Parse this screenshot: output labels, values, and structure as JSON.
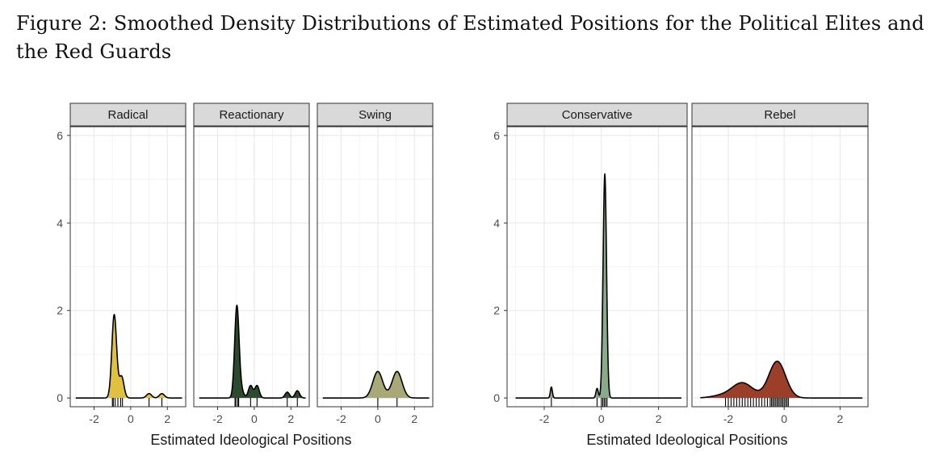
{
  "caption": "Figure 2: Smoothed Density Distributions of Estimated Positions for the Political Elites and the Red Guards",
  "chart_data": [
    {
      "type": "area",
      "group": "Political Elites",
      "xlabel": "Estimated Ideological Positions",
      "ylabel": "",
      "xlim": [
        -3.3,
        3.0
      ],
      "ylim": [
        -0.2,
        6.2
      ],
      "x_ticks": [
        -2,
        0,
        2
      ],
      "y_ticks": [
        0,
        2,
        4,
        6
      ],
      "grid": true,
      "panels": [
        {
          "name": "Radical",
          "fill": "#e0c040",
          "peaks": [
            {
              "mu": -0.9,
              "sd": 0.13,
              "w": 0.62
            },
            {
              "mu": -0.5,
              "sd": 0.13,
              "w": 0.16
            },
            {
              "mu": 1.0,
              "sd": 0.14,
              "w": 0.035
            },
            {
              "mu": 1.7,
              "sd": 0.14,
              "w": 0.035
            }
          ],
          "rug": [
            -1.0,
            -0.95,
            -0.85,
            -0.7,
            -0.55,
            -0.45,
            1.0,
            1.7
          ]
        },
        {
          "name": "Reactionary",
          "fill": "#2e4a2e",
          "peaks": [
            {
              "mu": -0.95,
              "sd": 0.12,
              "w": 0.63
            },
            {
              "mu": -0.7,
              "sd": 0.13,
              "w": 0.05
            },
            {
              "mu": -0.2,
              "sd": 0.12,
              "w": 0.085
            },
            {
              "mu": 0.15,
              "sd": 0.12,
              "w": 0.085
            },
            {
              "mu": 1.8,
              "sd": 0.12,
              "w": 0.04
            },
            {
              "mu": 2.35,
              "sd": 0.12,
              "w": 0.05
            }
          ],
          "rug": [
            -1.05,
            -1.0,
            -0.9,
            -0.85,
            -0.2,
            0.15,
            1.8,
            2.35
          ]
        },
        {
          "name": "Swing",
          "fill": "#a8a878",
          "peaks": [
            {
              "mu": 0.0,
              "sd": 0.27,
              "w": 0.41
            },
            {
              "mu": 1.05,
              "sd": 0.27,
              "w": 0.41
            }
          ],
          "rug": [
            0.0,
            1.05
          ]
        }
      ]
    },
    {
      "type": "area",
      "group": "Red Guards",
      "xlabel": "Estimated Ideological Positions",
      "ylabel": "",
      "xlim": [
        -3.3,
        3.0
      ],
      "ylim": [
        -0.2,
        6.2
      ],
      "x_ticks": [
        -2,
        0,
        2
      ],
      "y_ticks": [
        0,
        2,
        4,
        6
      ],
      "grid": true,
      "panels": [
        {
          "name": "Conservative",
          "fill": "#8aab8a",
          "peaks": [
            {
              "mu": -1.75,
              "sd": 0.035,
              "w": 0.022
            },
            {
              "mu": -0.15,
              "sd": 0.04,
              "w": 0.022
            },
            {
              "mu": 0.12,
              "sd": 0.06,
              "w": 0.77
            }
          ],
          "rug": [
            -1.75,
            -0.15,
            0.0,
            0.05,
            0.1,
            0.15,
            0.2
          ]
        },
        {
          "name": "Rebel",
          "fill": "#9b3f2a",
          "peaks": [
            {
              "mu": -2.3,
              "sd": 0.35,
              "w": 0.04
            },
            {
              "mu": -1.5,
              "sd": 0.38,
              "w": 0.33
            },
            {
              "mu": -0.25,
              "sd": 0.3,
              "w": 0.63
            }
          ],
          "rug": [
            -2.1,
            -2.0,
            -1.9,
            -1.8,
            -1.7,
            -1.6,
            -1.5,
            -1.4,
            -1.3,
            -1.2,
            -1.1,
            -1.0,
            -0.9,
            -0.8,
            -0.7,
            -0.6,
            -0.5,
            -0.45,
            -0.4,
            -0.35,
            -0.3,
            -0.25,
            -0.2,
            -0.15,
            -0.1,
            -0.05,
            0.0,
            0.05,
            0.1,
            0.15
          ]
        }
      ]
    }
  ]
}
